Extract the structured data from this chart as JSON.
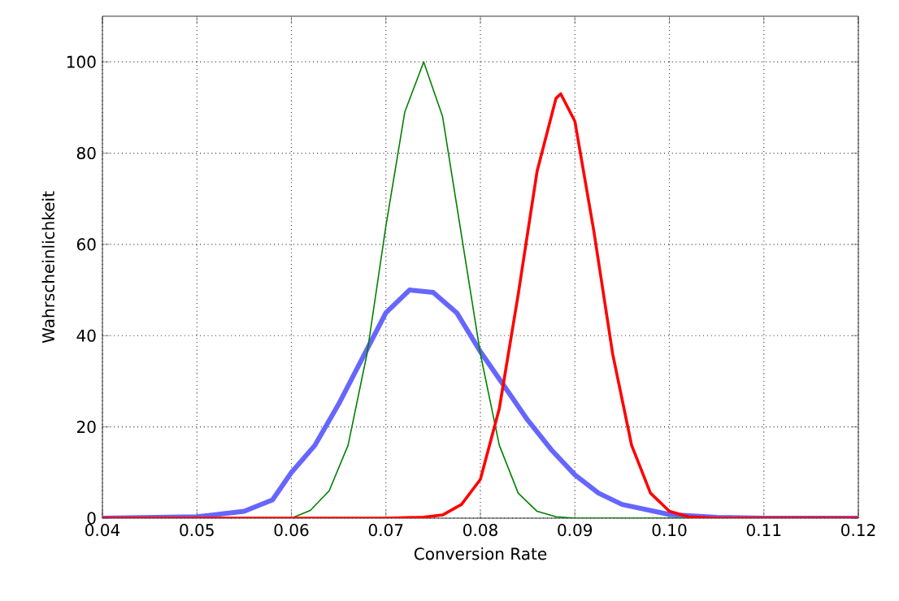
{
  "chart_data": {
    "type": "line",
    "xlabel": "Conversion Rate",
    "ylabel": "Wahrscheinlichkeit",
    "xlim": [
      0.04,
      0.12
    ],
    "ylim": [
      0,
      110
    ],
    "xticks": [
      0.04,
      0.05,
      0.06,
      0.07,
      0.08,
      0.09,
      {
        "value": 0.1,
        "label": "0.10"
      },
      0.11,
      0.12
    ],
    "yticks": [
      0,
      20,
      40,
      60,
      80,
      100
    ],
    "grid": true,
    "marker": "none",
    "line_style": "solid",
    "series": [
      {
        "color": "#6666ff",
        "x": [
          0.04,
          0.05,
          0.055,
          0.058,
          0.06,
          0.0625,
          0.065,
          0.0675,
          0.07,
          0.0725,
          0.075,
          0.0775,
          0.08,
          0.0825,
          0.085,
          0.0875,
          0.09,
          0.0925,
          0.095,
          0.1,
          0.105,
          0.11,
          0.12
        ],
        "values": [
          0,
          0.3,
          1.5,
          4,
          10,
          16,
          25,
          35,
          45,
          50,
          49.5,
          45,
          36.5,
          29,
          21.5,
          15,
          9.5,
          5.5,
          3,
          0.8,
          0.2,
          0,
          0
        ]
      },
      {
        "color": "#008000",
        "x": [
          0.04,
          0.06,
          0.062,
          0.064,
          0.066,
          0.068,
          0.07,
          0.072,
          0.074,
          0.076,
          0.078,
          0.08,
          0.082,
          0.084,
          0.086,
          0.088,
          0.09,
          0.12
        ],
        "values": [
          0,
          0,
          1.7,
          6,
          16,
          36,
          64,
          89,
          100,
          88,
          62,
          36,
          16,
          5.5,
          1.5,
          0.3,
          0,
          0
        ]
      },
      {
        "color": "#ff0000",
        "x": [
          0.04,
          0.07,
          0.074,
          0.076,
          0.078,
          0.08,
          0.082,
          0.084,
          0.086,
          0.088,
          0.0885,
          0.09,
          0.092,
          0.094,
          0.096,
          0.098,
          0.1,
          0.102,
          0.105,
          0.12
        ],
        "values": [
          0,
          0,
          0.2,
          0.7,
          3,
          8.5,
          24,
          49,
          76,
          92,
          93,
          87,
          63,
          36,
          16,
          5.5,
          1.5,
          0.3,
          0,
          0
        ]
      }
    ]
  }
}
